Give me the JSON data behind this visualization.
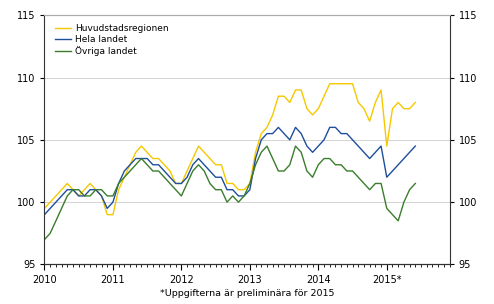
{
  "footnote": "*Uppgifterna är preliminära för 2015",
  "legend": [
    "Huvudstadsregionen",
    "Hela landet",
    "Övriga landet"
  ],
  "colors": [
    "#f5c800",
    "#1f4e9c",
    "#3a7d2c"
  ],
  "ylim": [
    95,
    115
  ],
  "yticks": [
    95,
    100,
    105,
    110,
    115
  ],
  "xlabel_ticks": [
    "2010",
    "2011",
    "2012",
    "2013",
    "2014",
    "2015*"
  ],
  "n_months": 66,
  "huvudstadsregionen": [
    99.5,
    100.0,
    100.5,
    101.0,
    101.5,
    101.0,
    100.5,
    101.0,
    101.5,
    101.0,
    100.5,
    99.0,
    99.0,
    101.0,
    102.0,
    103.0,
    104.0,
    104.5,
    104.0,
    103.5,
    103.5,
    103.0,
    102.5,
    101.5,
    101.5,
    102.5,
    103.5,
    104.5,
    104.0,
    103.5,
    103.0,
    103.0,
    101.5,
    101.5,
    101.0,
    101.0,
    101.5,
    104.0,
    105.5,
    106.0,
    107.0,
    108.5,
    108.5,
    108.0,
    109.0,
    109.0,
    107.5,
    107.0,
    107.5,
    108.5,
    109.5,
    109.5,
    109.5,
    109.5,
    109.5,
    108.0,
    107.5,
    106.5,
    108.0,
    109.0,
    104.5,
    107.5,
    108.0,
    107.5,
    107.5,
    108.0
  ],
  "hela_landet": [
    99.0,
    99.5,
    100.0,
    100.5,
    101.0,
    101.0,
    100.5,
    100.5,
    101.0,
    101.0,
    100.5,
    99.5,
    100.0,
    101.5,
    102.5,
    103.0,
    103.5,
    103.5,
    103.5,
    103.0,
    103.0,
    102.5,
    102.0,
    101.5,
    101.5,
    102.0,
    103.0,
    103.5,
    103.0,
    102.5,
    102.0,
    102.0,
    101.0,
    101.0,
    100.5,
    100.5,
    101.0,
    103.5,
    105.0,
    105.5,
    105.5,
    106.0,
    105.5,
    105.0,
    106.0,
    105.5,
    104.5,
    104.0,
    104.5,
    105.0,
    106.0,
    106.0,
    105.5,
    105.5,
    105.0,
    104.5,
    104.0,
    103.5,
    104.0,
    104.5,
    102.0,
    102.5,
    103.0,
    103.5,
    104.0,
    104.5
  ],
  "ovriga_landet": [
    97.0,
    97.5,
    98.5,
    99.5,
    100.5,
    101.0,
    101.0,
    100.5,
    100.5,
    101.0,
    101.0,
    100.5,
    100.5,
    101.5,
    102.0,
    102.5,
    103.0,
    103.5,
    103.0,
    102.5,
    102.5,
    102.0,
    101.5,
    101.0,
    100.5,
    101.5,
    102.5,
    103.0,
    102.5,
    101.5,
    101.0,
    101.0,
    100.0,
    100.5,
    100.0,
    100.5,
    101.5,
    103.0,
    104.0,
    104.5,
    103.5,
    102.5,
    102.5,
    103.0,
    104.5,
    104.0,
    102.5,
    102.0,
    103.0,
    103.5,
    103.5,
    103.0,
    103.0,
    102.5,
    102.5,
    102.0,
    101.5,
    101.0,
    101.5,
    101.5,
    99.5,
    99.0,
    98.5,
    100.0,
    101.0,
    101.5
  ]
}
